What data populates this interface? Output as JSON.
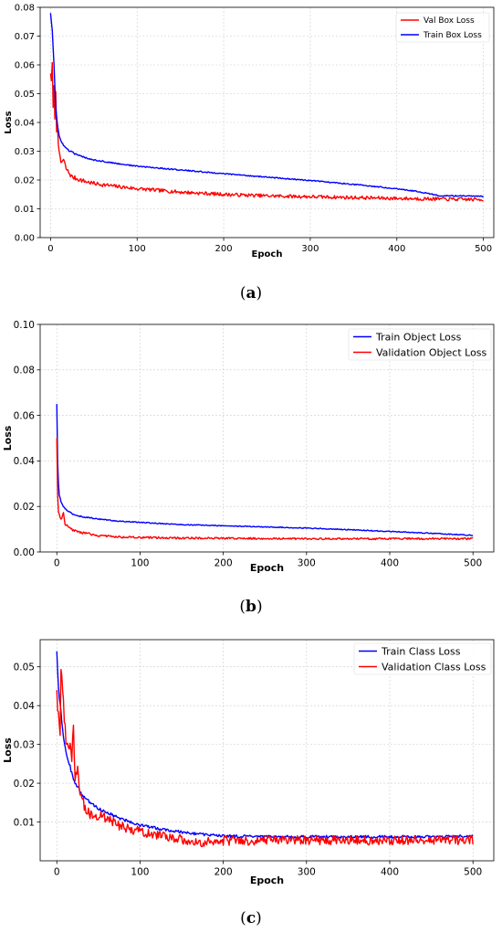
{
  "panels": [
    {
      "caption": "a",
      "chart_data": {
        "type": "line",
        "title": "",
        "xlabel": "Epoch",
        "ylabel": "Loss",
        "xlim": [
          -12,
          512
        ],
        "ylim": [
          0,
          0.08
        ],
        "xticks": [
          0,
          100,
          200,
          300,
          400,
          500
        ],
        "yticks": [
          0.0,
          0.01,
          0.02,
          0.03,
          0.04,
          0.05,
          0.06,
          0.07,
          0.08
        ],
        "ytick_decimals": 2,
        "grid": true,
        "legend_position": "top-right",
        "series": [
          {
            "name": "Val Box Loss",
            "color": "#ff0000",
            "noise": 0.0006,
            "x": [
              0,
              1,
              2,
              3,
              4,
              5,
              6,
              7,
              8,
              9,
              10,
              12,
              15,
              18,
              20,
              25,
              30,
              40,
              50,
              75,
              100,
              150,
              200,
              250,
              300,
              350,
              400,
              450,
              500
            ],
            "y": [
              0.057,
              0.055,
              0.06,
              0.045,
              0.052,
              0.042,
              0.05,
              0.037,
              0.04,
              0.033,
              0.029,
              0.026,
              0.027,
              0.024,
              0.023,
              0.021,
              0.0205,
              0.0195,
              0.0188,
              0.0178,
              0.017,
              0.0158,
              0.015,
              0.0145,
              0.0142,
              0.0139,
              0.0136,
              0.0134,
              0.0132
            ]
          },
          {
            "name": "Train Box Loss",
            "color": "#0000ff",
            "noise": 0.0002,
            "x": [
              0,
              2,
              4,
              6,
              8,
              10,
              15,
              20,
              30,
              40,
              50,
              75,
              100,
              150,
              200,
              250,
              300,
              350,
              400,
              425,
              450,
              475,
              500
            ],
            "y": [
              0.078,
              0.072,
              0.06,
              0.045,
              0.039,
              0.035,
              0.032,
              0.0305,
              0.0288,
              0.0278,
              0.027,
              0.0258,
              0.0248,
              0.0235,
              0.0222,
              0.021,
              0.0198,
              0.0185,
              0.017,
              0.016,
              0.0145,
              0.0145,
              0.0143
            ]
          }
        ]
      }
    },
    {
      "caption": "b",
      "chart_data": {
        "type": "line",
        "title": "",
        "xlabel": "Epoch",
        "ylabel": "Loss",
        "xlim": [
          -20,
          525
        ],
        "ylim": [
          0,
          0.1
        ],
        "xticks": [
          0,
          100,
          200,
          300,
          400,
          500
        ],
        "yticks": [
          0.0,
          0.02,
          0.04,
          0.06,
          0.08,
          0.1
        ],
        "ytick_decimals": 2,
        "grid": true,
        "legend_position": "top-right",
        "series": [
          {
            "name": "Train Object Loss",
            "color": "#0000ff",
            "noise": 0.0002,
            "x": [
              0,
              1,
              2,
              3,
              5,
              8,
              10,
              15,
              20,
              30,
              50,
              75,
              100,
              150,
              200,
              250,
              300,
              350,
              400,
              450,
              500
            ],
            "y": [
              0.065,
              0.04,
              0.03,
              0.025,
              0.022,
              0.02,
              0.019,
              0.0175,
              0.0165,
              0.0155,
              0.0145,
              0.0135,
              0.013,
              0.012,
              0.0115,
              0.011,
              0.0105,
              0.0098,
              0.009,
              0.0082,
              0.0073
            ]
          },
          {
            "name": "Validation Object Loss",
            "color": "#ff0000",
            "noise": 0.0004,
            "x": [
              0,
              1,
              2,
              3,
              5,
              8,
              10,
              15,
              20,
              30,
              50,
              75,
              100,
              150,
              200,
              250,
              300,
              400,
              500
            ],
            "y": [
              0.05,
              0.025,
              0.018,
              0.016,
              0.014,
              0.017,
              0.012,
              0.0105,
              0.0095,
              0.0085,
              0.0072,
              0.0066,
              0.0063,
              0.0061,
              0.006,
              0.0059,
              0.0058,
              0.0058,
              0.0058
            ]
          }
        ]
      }
    },
    {
      "caption": "c",
      "chart_data": {
        "type": "line",
        "title": "",
        "xlabel": "Epoch",
        "ylabel": "Loss",
        "xlim": [
          -20,
          525
        ],
        "ylim": [
          0,
          0.057
        ],
        "xticks": [
          0,
          100,
          200,
          300,
          400,
          500
        ],
        "yticks": [
          0.01,
          0.02,
          0.03,
          0.04,
          0.05
        ],
        "ytick_decimals": 2,
        "grid": true,
        "legend_position": "top-right",
        "series": [
          {
            "name": "Train Class Loss",
            "color": "#0000ff",
            "noise": 0.00035,
            "x": [
              0,
              2,
              4,
              6,
              8,
              10,
              15,
              20,
              25,
              30,
              40,
              50,
              75,
              100,
              125,
              150,
              175,
              200,
              250,
              300,
              350,
              400,
              450,
              500
            ],
            "y": [
              0.054,
              0.045,
              0.04,
              0.036,
              0.032,
              0.029,
              0.025,
              0.021,
              0.019,
              0.017,
              0.015,
              0.0135,
              0.011,
              0.0092,
              0.0082,
              0.0074,
              0.0068,
              0.0064,
              0.0062,
              0.0062,
              0.0062,
              0.0062,
              0.0062,
              0.0063
            ]
          },
          {
            "name": "Validation Class Loss",
            "color": "#ff0000",
            "noise": 0.0012,
            "x": [
              0,
              2,
              4,
              5,
              6,
              8,
              10,
              12,
              15,
              18,
              20,
              22,
              25,
              28,
              30,
              35,
              40,
              50,
              60,
              75,
              100,
              125,
              150,
              170,
              200,
              225,
              250,
              300,
              350,
              400,
              450,
              500
            ],
            "y": [
              0.044,
              0.037,
              0.032,
              0.05,
              0.046,
              0.04,
              0.034,
              0.029,
              0.03,
              0.027,
              0.035,
              0.02,
              0.024,
              0.018,
              0.016,
              0.013,
              0.012,
              0.0115,
              0.011,
              0.009,
              0.0075,
              0.0065,
              0.0055,
              0.0045,
              0.0052,
              0.005,
              0.0053,
              0.0053,
              0.0053,
              0.0053,
              0.0053,
              0.0054
            ]
          }
        ]
      }
    }
  ]
}
